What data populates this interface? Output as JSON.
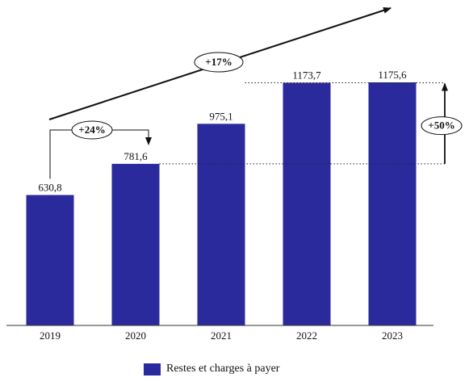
{
  "chart_data": {
    "type": "bar",
    "categories": [
      "2019",
      "2020",
      "2021",
      "2022",
      "2023"
    ],
    "value_labels": [
      "630,8",
      "781,6",
      "975,1",
      "1173,7",
      "1175,6"
    ],
    "values": [
      630.8,
      781.6,
      975.1,
      1173.7,
      1175.6
    ],
    "series": [
      {
        "name": "Restes et charges à payer",
        "values": [
          630.8,
          781.6,
          975.1,
          1173.7,
          1175.6
        ]
      }
    ],
    "ylim": [
      0,
      1175.6
    ],
    "grid": false,
    "legend_position": "bottom",
    "bar_color": "#2b2a9c",
    "annotations": {
      "growth_2019_2020": "+24%",
      "average_growth": "+17%",
      "growth_2020_2023": "+50%"
    }
  }
}
